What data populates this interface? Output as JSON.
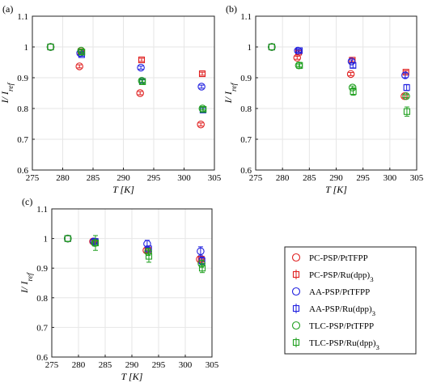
{
  "chart_data": [
    {
      "type": "scatter",
      "panel_label": "(a)",
      "xlabel": "T [K]",
      "ylabel": "I/ I_ref",
      "xlim": [
        275,
        305
      ],
      "ylim": [
        0.6,
        1.1
      ],
      "xticks": [
        275,
        280,
        285,
        290,
        295,
        300,
        305
      ],
      "yticks": [
        0.6,
        0.7,
        0.8,
        0.9,
        1,
        1.1
      ],
      "grid": true,
      "series": [
        {
          "name": "PC-PSP/PtTFPP",
          "marker": "circle",
          "color": "#e02020",
          "x": [
            278,
            283,
            293,
            303
          ],
          "y": [
            1.0,
            0.937,
            0.85,
            0.748
          ],
          "err": [
            0,
            0.005,
            0.005,
            0.005
          ]
        },
        {
          "name": "PC-PSP/Ru(dpp)3",
          "marker": "square",
          "color": "#e02020",
          "x": [
            278,
            283,
            293,
            303
          ],
          "y": [
            1.0,
            0.985,
            0.958,
            0.913
          ],
          "err": [
            0,
            0.005,
            0.005,
            0.005
          ]
        },
        {
          "name": "AA-PSP/PtTFPP",
          "marker": "circle",
          "color": "#2020e0",
          "x": [
            278,
            283,
            293,
            303
          ],
          "y": [
            1.0,
            0.98,
            0.933,
            0.871
          ],
          "err": [
            0,
            0.005,
            0.005,
            0.005
          ]
        },
        {
          "name": "AA-PSP/Ru(dpp)3",
          "marker": "square",
          "color": "#2020e0",
          "x": [
            278,
            283,
            293,
            303
          ],
          "y": [
            1.0,
            0.975,
            0.888,
            0.795
          ],
          "err": [
            0,
            0.005,
            0.005,
            0.005
          ]
        },
        {
          "name": "TLC-PSP/PtTFPP",
          "marker": "circle",
          "color": "#20a020",
          "x": [
            278,
            283,
            293,
            303
          ],
          "y": [
            1.0,
            0.988,
            0.89,
            0.8
          ],
          "err": [
            0,
            0.005,
            0.005,
            0.005
          ]
        },
        {
          "name": "TLC-PSP/Ru(dpp)3",
          "marker": "square",
          "color": "#20a020",
          "x": [
            278,
            283,
            293,
            303
          ],
          "y": [
            1.0,
            0.983,
            0.887,
            0.797
          ],
          "err": [
            0,
            0.008,
            0.008,
            0.008
          ]
        }
      ]
    },
    {
      "type": "scatter",
      "panel_label": "(b)",
      "xlabel": "T [K]",
      "ylabel": "I/ I_ref",
      "xlim": [
        275,
        305
      ],
      "ylim": [
        0.6,
        1.1
      ],
      "xticks": [
        275,
        280,
        285,
        290,
        295,
        300,
        305
      ],
      "yticks": [
        0.6,
        0.7,
        0.8,
        0.9,
        1,
        1.1
      ],
      "grid": true,
      "series": [
        {
          "name": "PC-PSP/PtTFPP",
          "marker": "circle",
          "color": "#e02020",
          "x": [
            278,
            283,
            293,
            303
          ],
          "y": [
            1.0,
            0.965,
            0.912,
            0.84
          ],
          "err": [
            0,
            0.005,
            0.005,
            0.005
          ]
        },
        {
          "name": "PC-PSP/Ru(dpp)3",
          "marker": "square",
          "color": "#e02020",
          "x": [
            278,
            283,
            293,
            303
          ],
          "y": [
            1.0,
            0.983,
            0.957,
            0.918
          ],
          "err": [
            0,
            0.005,
            0.005,
            0.005
          ]
        },
        {
          "name": "AA-PSP/PtTFPP",
          "marker": "circle",
          "color": "#2020e0",
          "x": [
            278,
            283,
            293,
            303
          ],
          "y": [
            1.0,
            0.988,
            0.953,
            0.908
          ],
          "err": [
            0,
            0.005,
            0.005,
            0.008
          ]
        },
        {
          "name": "AA-PSP/Ru(dpp)3",
          "marker": "square",
          "color": "#2020e0",
          "x": [
            278,
            283,
            293,
            303
          ],
          "y": [
            1.0,
            0.988,
            0.94,
            0.868
          ],
          "err": [
            0,
            0.005,
            0.008,
            0.01
          ]
        },
        {
          "name": "TLC-PSP/PtTFPP",
          "marker": "circle",
          "color": "#20a020",
          "x": [
            278,
            283,
            293,
            303
          ],
          "y": [
            1.0,
            0.94,
            0.868,
            0.84
          ],
          "err": [
            0,
            0.005,
            0.005,
            0.005
          ]
        },
        {
          "name": "TLC-PSP/Ru(dpp)3",
          "marker": "square",
          "color": "#20a020",
          "x": [
            278,
            283,
            293,
            303
          ],
          "y": [
            1.0,
            0.94,
            0.855,
            0.79
          ],
          "err": [
            0,
            0.01,
            0.012,
            0.015
          ]
        }
      ]
    },
    {
      "type": "scatter",
      "panel_label": "(c)",
      "xlabel": "T [K]",
      "ylabel": "I/ I_ref",
      "xlim": [
        275,
        305
      ],
      "ylim": [
        0.6,
        1.1
      ],
      "xticks": [
        275,
        280,
        285,
        290,
        295,
        300,
        305
      ],
      "yticks": [
        0.6,
        0.7,
        0.8,
        0.9,
        1,
        1.1
      ],
      "grid": true,
      "series": [
        {
          "name": "PC-PSP/PtTFPP",
          "marker": "circle",
          "color": "#e02020",
          "x": [
            278,
            283,
            293,
            303
          ],
          "y": [
            1.0,
            0.99,
            0.96,
            0.93
          ],
          "err": [
            0,
            0.005,
            0.008,
            0.01
          ]
        },
        {
          "name": "PC-PSP/Ru(dpp)3",
          "marker": "square",
          "color": "#e02020",
          "x": [
            278,
            283,
            293,
            303
          ],
          "y": [
            1.0,
            0.99,
            0.96,
            0.93
          ],
          "err": [
            0,
            0.01,
            0.01,
            0.01
          ]
        },
        {
          "name": "AA-PSP/PtTFPP",
          "marker": "circle",
          "color": "#2020e0",
          "x": [
            278,
            283,
            293,
            303
          ],
          "y": [
            1.0,
            0.99,
            0.982,
            0.957
          ],
          "err": [
            0,
            0.008,
            0.012,
            0.015
          ]
        },
        {
          "name": "AA-PSP/Ru(dpp)3",
          "marker": "square",
          "color": "#2020e0",
          "x": [
            278,
            283,
            293,
            303
          ],
          "y": [
            1.0,
            0.99,
            0.965,
            0.925
          ],
          "err": [
            0,
            0.008,
            0.01,
            0.012
          ]
        },
        {
          "name": "TLC-PSP/PtTFPP",
          "marker": "circle",
          "color": "#20a020",
          "x": [
            278,
            283,
            293,
            303
          ],
          "y": [
            1.0,
            0.985,
            0.955,
            0.915
          ],
          "err": [
            0,
            0.01,
            0.012,
            0.012
          ]
        },
        {
          "name": "TLC-PSP/Ru(dpp)3",
          "marker": "square",
          "color": "#20a020",
          "x": [
            278,
            283,
            293,
            303
          ],
          "y": [
            1.0,
            0.985,
            0.94,
            0.9
          ],
          "err": [
            0,
            0.025,
            0.02,
            0.015
          ]
        }
      ]
    }
  ],
  "legend": {
    "entries": [
      {
        "label": "PC-PSP/PtTFPP",
        "marker": "circle",
        "color": "#e02020"
      },
      {
        "label": "PC-PSP/Ru(dpp)3",
        "marker": "square",
        "color": "#e02020"
      },
      {
        "label": "AA-PSP/PtTFPP",
        "marker": "circle",
        "color": "#2020e0"
      },
      {
        "label": "AA-PSP/Ru(dpp)3",
        "marker": "square",
        "color": "#2020e0"
      },
      {
        "label": "TLC-PSP/PtTFPP",
        "marker": "circle",
        "color": "#20a020"
      },
      {
        "label": "TLC-PSP/Ru(dpp)3",
        "marker": "square",
        "color": "#20a020"
      }
    ],
    "placement": "bottom-right"
  }
}
